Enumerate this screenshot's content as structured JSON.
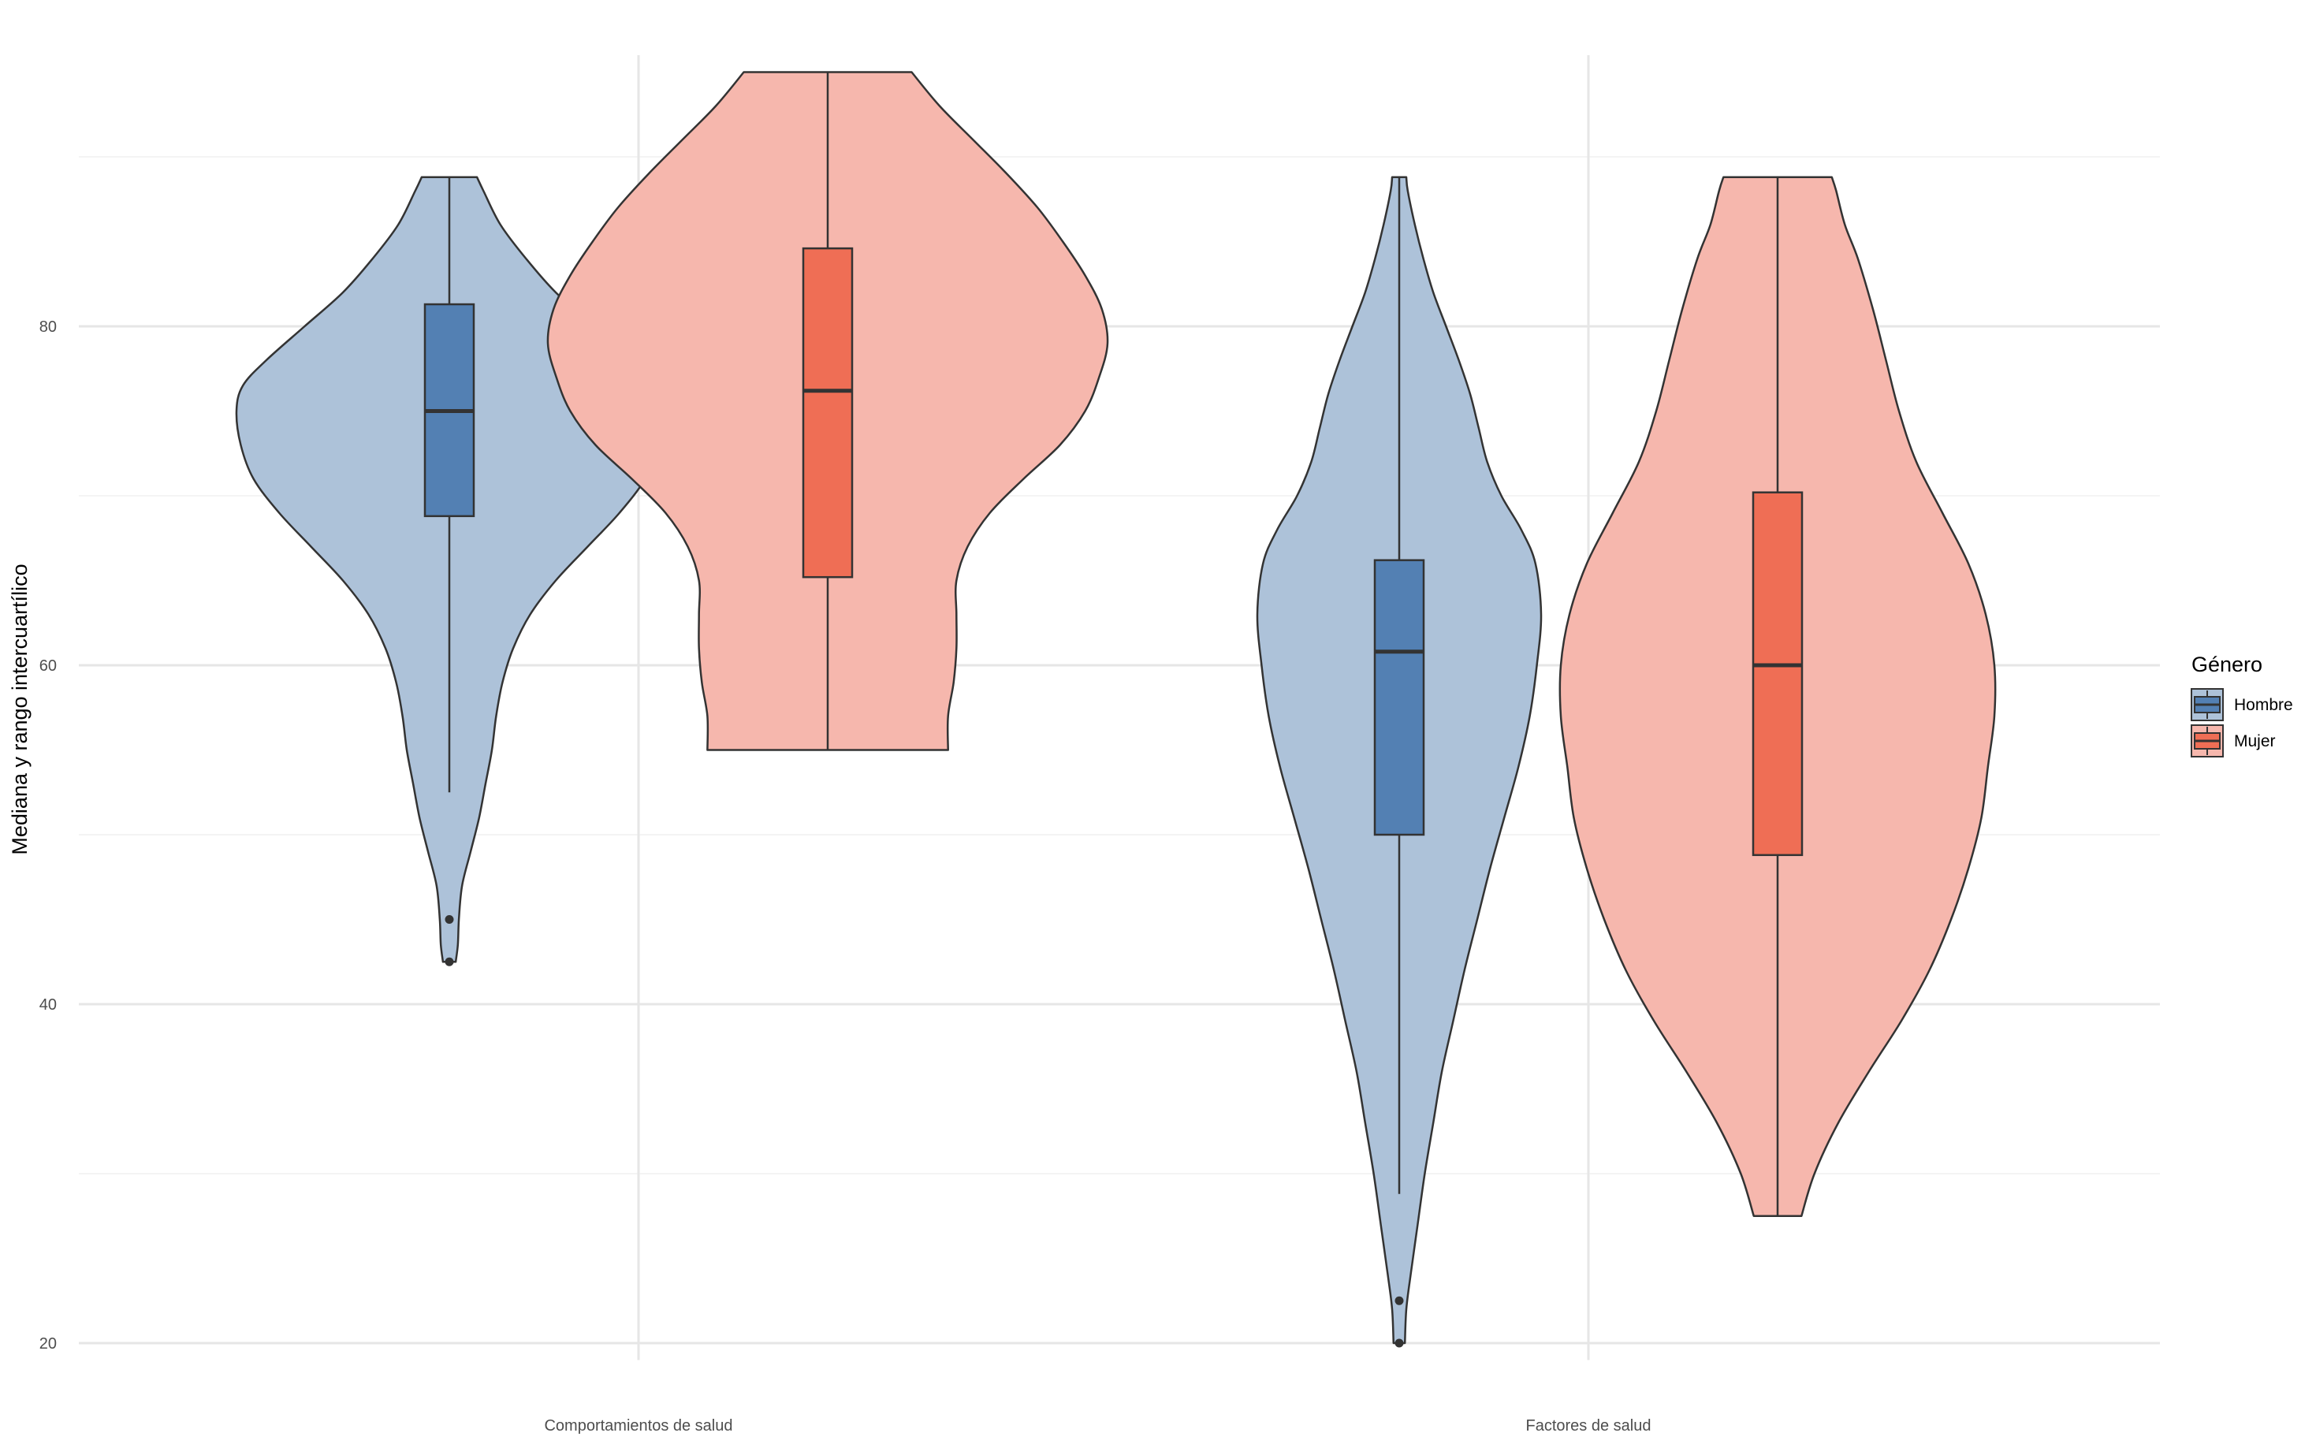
{
  "chart_data": {
    "type": "violin",
    "title": "",
    "xlabel": "",
    "ylabel": "Mediana y rango intercuartílico",
    "ylim": [
      19,
      96
    ],
    "y_major_ticks": [
      20,
      40,
      60,
      80
    ],
    "y_minor_ticks": [
      30,
      50,
      70,
      90
    ],
    "grid": true,
    "categories": [
      "Comportamientos de salud",
      "Factores de salud"
    ],
    "legend": {
      "title": "Género",
      "position": "right",
      "entries": [
        "Hombre",
        "Mujer"
      ]
    },
    "colors": {
      "Hombre": {
        "violin": "#adc2d9",
        "box": "#5380b3"
      },
      "Mujer": {
        "violin": "#f6b7ad",
        "box": "#ef6e55"
      }
    },
    "series": [
      {
        "name": "Hombre",
        "groups": [
          {
            "category": "Comportamientos de salud",
            "min": 42.5,
            "q1": 68.8,
            "median": 75.0,
            "q3": 81.3,
            "max": 88.8,
            "whisker_low": 52.5,
            "whisker_high": 88.8,
            "outliers": [
              45.0,
              42.5
            ],
            "density": [
              [
                42.5,
                0.03
              ],
              [
                43.5,
                0.04
              ],
              [
                45,
                0.045
              ],
              [
                47,
                0.06
              ],
              [
                49,
                0.1
              ],
              [
                51,
                0.14
              ],
              [
                53,
                0.17
              ],
              [
                55,
                0.2
              ],
              [
                57,
                0.22
              ],
              [
                59,
                0.25
              ],
              [
                61,
                0.3
              ],
              [
                63,
                0.38
              ],
              [
                65,
                0.5
              ],
              [
                67,
                0.65
              ],
              [
                69,
                0.8
              ],
              [
                71,
                0.92
              ],
              [
                73,
                0.98
              ],
              [
                75,
                1.0
              ],
              [
                76.5,
                0.97
              ],
              [
                78,
                0.86
              ],
              [
                80,
                0.68
              ],
              [
                82,
                0.5
              ],
              [
                84,
                0.36
              ],
              [
                86,
                0.24
              ],
              [
                88,
                0.16
              ],
              [
                88.8,
                0.13
              ]
            ]
          },
          {
            "category": "Factores de salud",
            "min": 20.0,
            "q1": 50.0,
            "median": 60.8,
            "q3": 66.2,
            "max": 88.8,
            "whisker_low": 28.8,
            "whisker_high": 88.8,
            "outliers": [
              22.5,
              20.0
            ],
            "density": [
              [
                20,
                0.04
              ],
              [
                22,
                0.05
              ],
              [
                24,
                0.08
              ],
              [
                27,
                0.13
              ],
              [
                30,
                0.18
              ],
              [
                33,
                0.24
              ],
              [
                36,
                0.3
              ],
              [
                39,
                0.38
              ],
              [
                42,
                0.46
              ],
              [
                45,
                0.55
              ],
              [
                48,
                0.64
              ],
              [
                51,
                0.74
              ],
              [
                54,
                0.84
              ],
              [
                57,
                0.92
              ],
              [
                60,
                0.97
              ],
              [
                63,
                1.0
              ],
              [
                66,
                0.96
              ],
              [
                68,
                0.86
              ],
              [
                70,
                0.72
              ],
              [
                72,
                0.62
              ],
              [
                74,
                0.56
              ],
              [
                76,
                0.5
              ],
              [
                78,
                0.42
              ],
              [
                80,
                0.33
              ],
              [
                82,
                0.24
              ],
              [
                84,
                0.17
              ],
              [
                86,
                0.11
              ],
              [
                88,
                0.06
              ],
              [
                88.8,
                0.05
              ]
            ]
          }
        ]
      },
      {
        "name": "Mujer",
        "groups": [
          {
            "category": "Comportamientos de salud",
            "min": 55.0,
            "q1": 65.2,
            "median": 76.2,
            "q3": 84.6,
            "max": 95.0,
            "whisker_low": 55.0,
            "whisker_high": 95.0,
            "outliers": [],
            "density": [
              [
                55,
                0.43
              ],
              [
                57,
                0.43
              ],
              [
                59,
                0.45
              ],
              [
                61,
                0.46
              ],
              [
                63,
                0.46
              ],
              [
                65,
                0.46
              ],
              [
                67,
                0.5
              ],
              [
                69,
                0.58
              ],
              [
                71,
                0.7
              ],
              [
                73,
                0.83
              ],
              [
                75,
                0.92
              ],
              [
                77,
                0.97
              ],
              [
                79,
                1.0
              ],
              [
                81,
                0.98
              ],
              [
                83,
                0.92
              ],
              [
                85,
                0.84
              ],
              [
                87,
                0.75
              ],
              [
                89,
                0.64
              ],
              [
                91,
                0.52
              ],
              [
                93,
                0.4
              ],
              [
                95,
                0.3
              ]
            ]
          },
          {
            "category": "Factores de salud",
            "min": 27.5,
            "q1": 48.8,
            "median": 60.0,
            "q3": 70.2,
            "max": 88.8,
            "whisker_low": 27.5,
            "whisker_high": 88.8,
            "outliers": [],
            "density": [
              [
                27.5,
                0.11
              ],
              [
                30,
                0.17
              ],
              [
                33,
                0.28
              ],
              [
                36,
                0.42
              ],
              [
                39,
                0.57
              ],
              [
                42,
                0.7
              ],
              [
                45,
                0.8
              ],
              [
                48,
                0.88
              ],
              [
                51,
                0.94
              ],
              [
                54,
                0.97
              ],
              [
                57,
                1.0
              ],
              [
                60,
                1.0
              ],
              [
                63,
                0.96
              ],
              [
                66,
                0.88
              ],
              [
                69,
                0.76
              ],
              [
                72,
                0.64
              ],
              [
                75,
                0.56
              ],
              [
                78,
                0.5
              ],
              [
                81,
                0.44
              ],
              [
                84,
                0.37
              ],
              [
                86,
                0.31
              ],
              [
                88,
                0.27
              ],
              [
                88.8,
                0.25
              ]
            ]
          }
        ]
      }
    ]
  }
}
